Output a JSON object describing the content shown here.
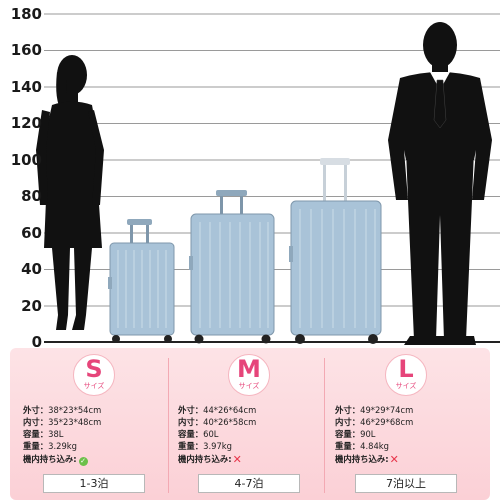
{
  "chart": {
    "y_ticks": [
      "180",
      "160",
      "140",
      "120",
      "100",
      "80",
      "60",
      "40",
      "20",
      "0"
    ],
    "figures": [
      "woman-silhouette",
      "man-silhouette"
    ],
    "suitcase_color": "#a9c3d8"
  },
  "sizes": [
    {
      "letter": "S",
      "sub": "サイズ",
      "specs": [
        {
          "label": "外寸",
          "value": "38*23*54cm"
        },
        {
          "label": "内寸",
          "value": "35*23*48cm"
        },
        {
          "label": "容量",
          "value": "38L"
        },
        {
          "label": "重量",
          "value": "3.29kg"
        }
      ],
      "carry_on_label": "機内持ち込み:",
      "carry_on_icon": "check-icon",
      "duration": "1-3泊"
    },
    {
      "letter": "M",
      "sub": "サイズ",
      "specs": [
        {
          "label": "外寸",
          "value": "44*26*64cm"
        },
        {
          "label": "内寸",
          "value": "40*26*58cm"
        },
        {
          "label": "容量",
          "value": "60L"
        },
        {
          "label": "重量",
          "value": "3.97kg"
        }
      ],
      "carry_on_label": "機内持ち込み:",
      "carry_on_icon": "cross-icon",
      "duration": "4-7泊"
    },
    {
      "letter": "L",
      "sub": "サイズ",
      "specs": [
        {
          "label": "外寸",
          "value": "49*29*74cm"
        },
        {
          "label": "内寸",
          "value": "46*29*68cm"
        },
        {
          "label": "容量",
          "value": "90L"
        },
        {
          "label": "重量",
          "value": "4.84kg"
        }
      ],
      "carry_on_label": "機内持ち込み:",
      "carry_on_icon": "cross-icon",
      "duration": "7泊以上"
    }
  ]
}
